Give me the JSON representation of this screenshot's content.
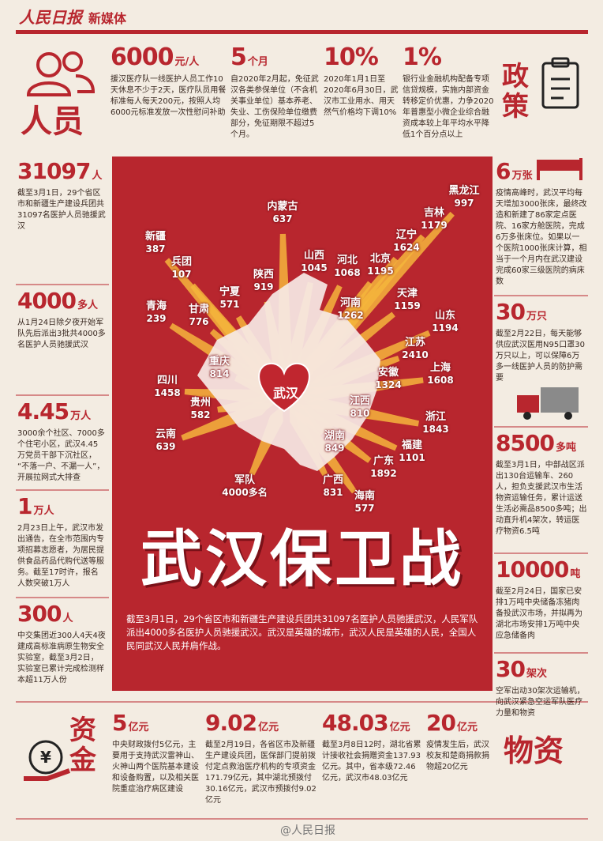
{
  "header": {
    "logo": "人民日报",
    "sub": "新媒体"
  },
  "people_label": "人员",
  "policy_label": "政策",
  "materials_label": "物资",
  "funds_label": "资金",
  "top_items": [
    {
      "big": "6000",
      "unit": "元/人",
      "text": "援汉医疗队一线医护人员工作10天休息不少于2天，医疗队员用餐标准每人每天200元，按照人均6000元标准发放一次性慰问补助"
    },
    {
      "big": "5",
      "unit": "个月",
      "text": "自2020年2月起，免征武汉各类参保单位（不含机关事业单位）基本养老、失业、工伤保险单位缴费部分，免征期限不超过5个月。"
    },
    {
      "big": "10%",
      "text": "2020年1月1日至2020年6月30日，武汉市工业用水、用天然气价格均下调10%"
    },
    {
      "big": "1%",
      "text": "银行业金融机构配备专项信贷规模，实施内部资金转移定价优惠，力争2020年普惠型小微企业综合融资成本较上年平均水平降低1个百分点以上"
    }
  ],
  "left_items": [
    {
      "big": "31097",
      "unit": "人",
      "text": "截至3月1日，29个省区市和新疆生产建设兵团共31097名医护人员驰援武汉"
    },
    {
      "big": "4000",
      "unit": "多人",
      "text": "从1月24日除夕夜开始军队先后派出3批共4000多名医护人员驰援武汉"
    },
    {
      "big": "4.45",
      "unit": "万人",
      "text": "3000余个社区、7000多个住宅小区，武汉4.45万党员干部下沉社区，“不落一户、不漏一人”，开展拉网式大排查"
    },
    {
      "big": "1",
      "unit": "万人",
      "text": "2月23日上午，武汉市发出通告，在全市范围内专项招募志愿者，为居民提供食品药品代购代送等服务。截至17时许，报名人数突破1万人"
    },
    {
      "big": "300",
      "unit": "人",
      "text": "中交集团近300人4天4夜建成高标准病原生物安全实验室，截至3月2日，实验室已累计完成检测样本超11万人份"
    }
  ],
  "right_items": [
    {
      "big": "6",
      "unit": "万张",
      "text": "疫情高峰时，武汉平均每天增加3000张床，最终改造和新建了86家定点医院、16家方舱医院，完成6万多张床位。如果以一个医院1000张床计算，相当于一个月内在武汉建设完成60家三级医院的病床数"
    },
    {
      "big": "30",
      "unit": "万只",
      "text": "截至2月22日，每天能够供应武汉医用N95口罩30万只以上，可以保障6万多一线医护人员的防护需要"
    },
    {
      "big": "8500",
      "unit": "多吨",
      "text": "截至3月1日，中部战区派出130台运输车、260人，担负支援武汉市生活物资运输任务，累计运送生活必需品8500多吨；出动直升机4架次，转运医疗物资6.5吨"
    },
    {
      "big": "10000",
      "unit": "吨",
      "text": "截至2月24日，国家已安排1万吨中央储备冻猪肉备投武汉市场，并拟再为湖北市场安排1万吨中央应急储备肉"
    },
    {
      "big": "30",
      "unit": "架次",
      "text": "空军出动30架次运输机，向武汉紧急空运军队医疗力量和物资"
    }
  ],
  "bottom_items": [
    {
      "big": "5",
      "unit": "亿元",
      "text": "中央财政拨付5亿元，主要用于支持武汉雷神山、火神山两个医院基本建设和设备购置，以及相关医院重症治疗病区建设"
    },
    {
      "big": "9.02",
      "unit": "亿元",
      "text": "截至2月19日，各省区市及新疆生产建设兵团，医保部门提前拨付定点救治医疗机构的专项资金171.79亿元，其中湖北预拨付30.16亿元，武汉市预拨付9.02亿元"
    },
    {
      "big": "48.03",
      "unit": "亿元",
      "text": "截至3月8日12时，湖北省累计接收社会捐赠资金137.93亿元。其中，省本级72.46亿元，武汉市48.03亿元"
    },
    {
      "big": "20",
      "unit": "亿元",
      "text": "疫情发生后，武汉校友和楚商捐款捐物超20亿元"
    }
  ],
  "map": {
    "center": "武汉",
    "provinces": [
      {
        "name": "黑龙江",
        "value": "997"
      },
      {
        "name": "吉林",
        "value": "1179"
      },
      {
        "name": "辽宁",
        "value": "1624"
      },
      {
        "name": "内蒙古",
        "value": "637"
      },
      {
        "name": "新疆",
        "value": "387"
      },
      {
        "name": "兵团",
        "value": "107"
      },
      {
        "name": "山西",
        "value": "1045"
      },
      {
        "name": "河北",
        "value": "1068"
      },
      {
        "name": "北京",
        "value": "1195"
      },
      {
        "name": "陕西",
        "value": "919"
      },
      {
        "name": "宁夏",
        "value": "571"
      },
      {
        "name": "青海",
        "value": "239"
      },
      {
        "name": "甘肃",
        "value": "776"
      },
      {
        "name": "天津",
        "value": "1159"
      },
      {
        "name": "河南",
        "value": "1262"
      },
      {
        "name": "山东",
        "value": "1194"
      },
      {
        "name": "江苏",
        "value": "2410"
      },
      {
        "name": "上海",
        "value": "1608"
      },
      {
        "name": "重庆",
        "value": "814"
      },
      {
        "name": "安徽",
        "value": "1324"
      },
      {
        "name": "四川",
        "value": "1458"
      },
      {
        "name": "贵州",
        "value": "582"
      },
      {
        "name": "江西",
        "value": "810"
      },
      {
        "name": "浙江",
        "value": "1843"
      },
      {
        "name": "云南",
        "value": "639"
      },
      {
        "name": "湖南",
        "value": "849"
      },
      {
        "name": "福建",
        "value": "1101"
      },
      {
        "name": "广东",
        "value": "1892"
      },
      {
        "name": "军队",
        "value": "4000多名"
      },
      {
        "name": "广西",
        "value": "831"
      },
      {
        "name": "海南",
        "value": "577"
      }
    ]
  },
  "title": "武汉保卫战",
  "intro": "截至3月1日，29个省区市和新疆生产建设兵团共31097名医护人员驰援武汉，人民军队派出4000多名医护人员驰援武汉。武汉是英雄的城市，武汉人民是英雄的人民，全国人民同武汉人民并肩作战。",
  "footer": "@人民日报"
}
